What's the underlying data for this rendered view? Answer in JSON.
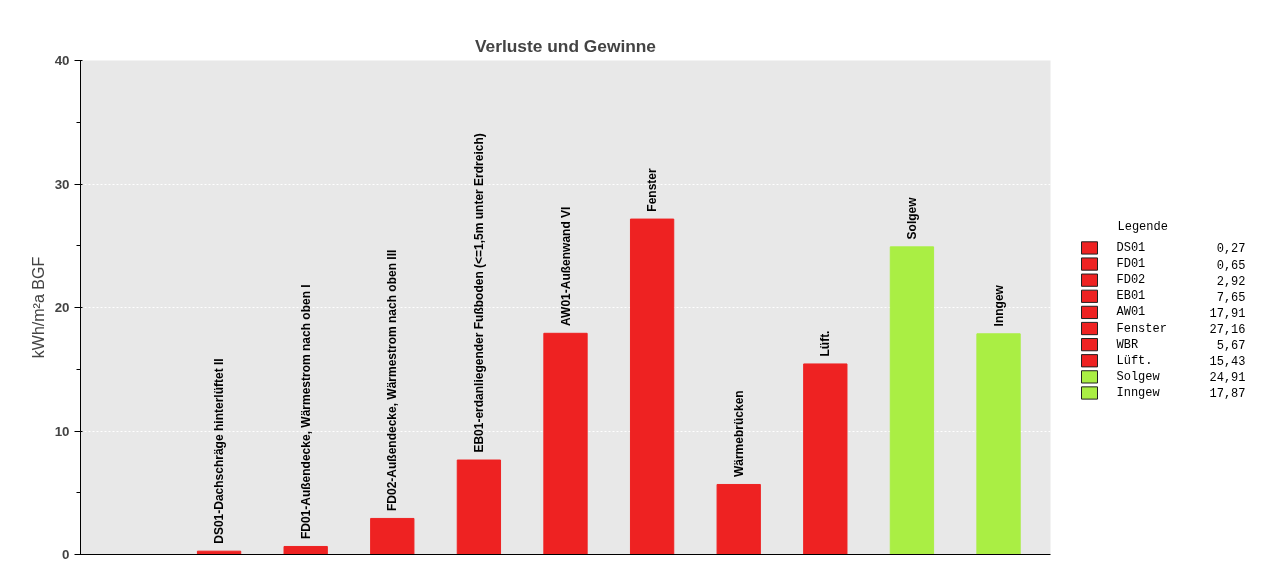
{
  "chart_data": {
    "type": "bar",
    "title": "Verluste und Gewinne",
    "ylabel": "kWh/m²a BGF",
    "legend_title": "Legende",
    "legend": "right",
    "grid": "y",
    "ylim": [
      0,
      40
    ],
    "yticks": [
      0,
      {
        "value": 5,
        "label": null
      },
      10,
      {
        "value": 15,
        "label": null
      },
      20,
      {
        "value": 25,
        "label": null
      },
      30,
      {
        "value": 35,
        "label": null
      },
      40
    ],
    "categories": [
      null,
      "DS01-Dachschräge hinterlüftet II",
      "FD01-Außendecke, Wärmestrom nach oben I",
      "FD02-Außendecke, Wärmestrom nach oben III",
      "EB01-erdanliegender Fußboden (<=1,5m unter Erdreich)",
      "AW01-Außenwand VI",
      "Fenster",
      "Wärmebrücken",
      "Lüft.",
      "Solgew",
      "Inngew"
    ],
    "annotations": [
      "0,27",
      "0,65",
      "2,92",
      "7,65",
      "17,91",
      "27,16",
      "5,67",
      "15,43",
      "24,91",
      "17,87"
    ],
    "series": [
      {
        "name": "DS01",
        "color": "#ee2222",
        "values": [
          null,
          0.27,
          null,
          null,
          null,
          null,
          null,
          null,
          null,
          null,
          null
        ]
      },
      {
        "name": "FD01",
        "color": "#ee2222",
        "values": [
          null,
          null,
          0.65,
          null,
          null,
          null,
          null,
          null,
          null,
          null,
          null
        ]
      },
      {
        "name": "FD02",
        "color": "#ee2222",
        "values": [
          null,
          null,
          null,
          2.92,
          null,
          null,
          null,
          null,
          null,
          null,
          null
        ]
      },
      {
        "name": "EB01",
        "color": "#ee2222",
        "values": [
          null,
          null,
          null,
          null,
          7.65,
          null,
          null,
          null,
          null,
          null,
          null
        ]
      },
      {
        "name": "AW01",
        "color": "#ee2222",
        "values": [
          null,
          null,
          null,
          null,
          null,
          17.91,
          null,
          null,
          null,
          null,
          null
        ]
      },
      {
        "name": "Fenster",
        "color": "#ee2222",
        "values": [
          null,
          null,
          null,
          null,
          null,
          null,
          27.16,
          null,
          null,
          null,
          null
        ]
      },
      {
        "name": "WBR",
        "color": "#ee2222",
        "values": [
          null,
          null,
          null,
          null,
          null,
          null,
          null,
          5.67,
          null,
          null,
          null
        ]
      },
      {
        "name": "Lüft.",
        "color": "#ee2222",
        "values": [
          null,
          null,
          null,
          null,
          null,
          null,
          null,
          null,
          15.43,
          null,
          null
        ]
      },
      {
        "name": "Solgew",
        "color": "#aaee44",
        "values": [
          null,
          null,
          null,
          null,
          null,
          null,
          null,
          null,
          null,
          24.91,
          null
        ]
      },
      {
        "name": "Inngew",
        "color": "#aaee44",
        "values": [
          null,
          null,
          null,
          null,
          null,
          null,
          null,
          null,
          null,
          null,
          17.87
        ]
      }
    ]
  }
}
